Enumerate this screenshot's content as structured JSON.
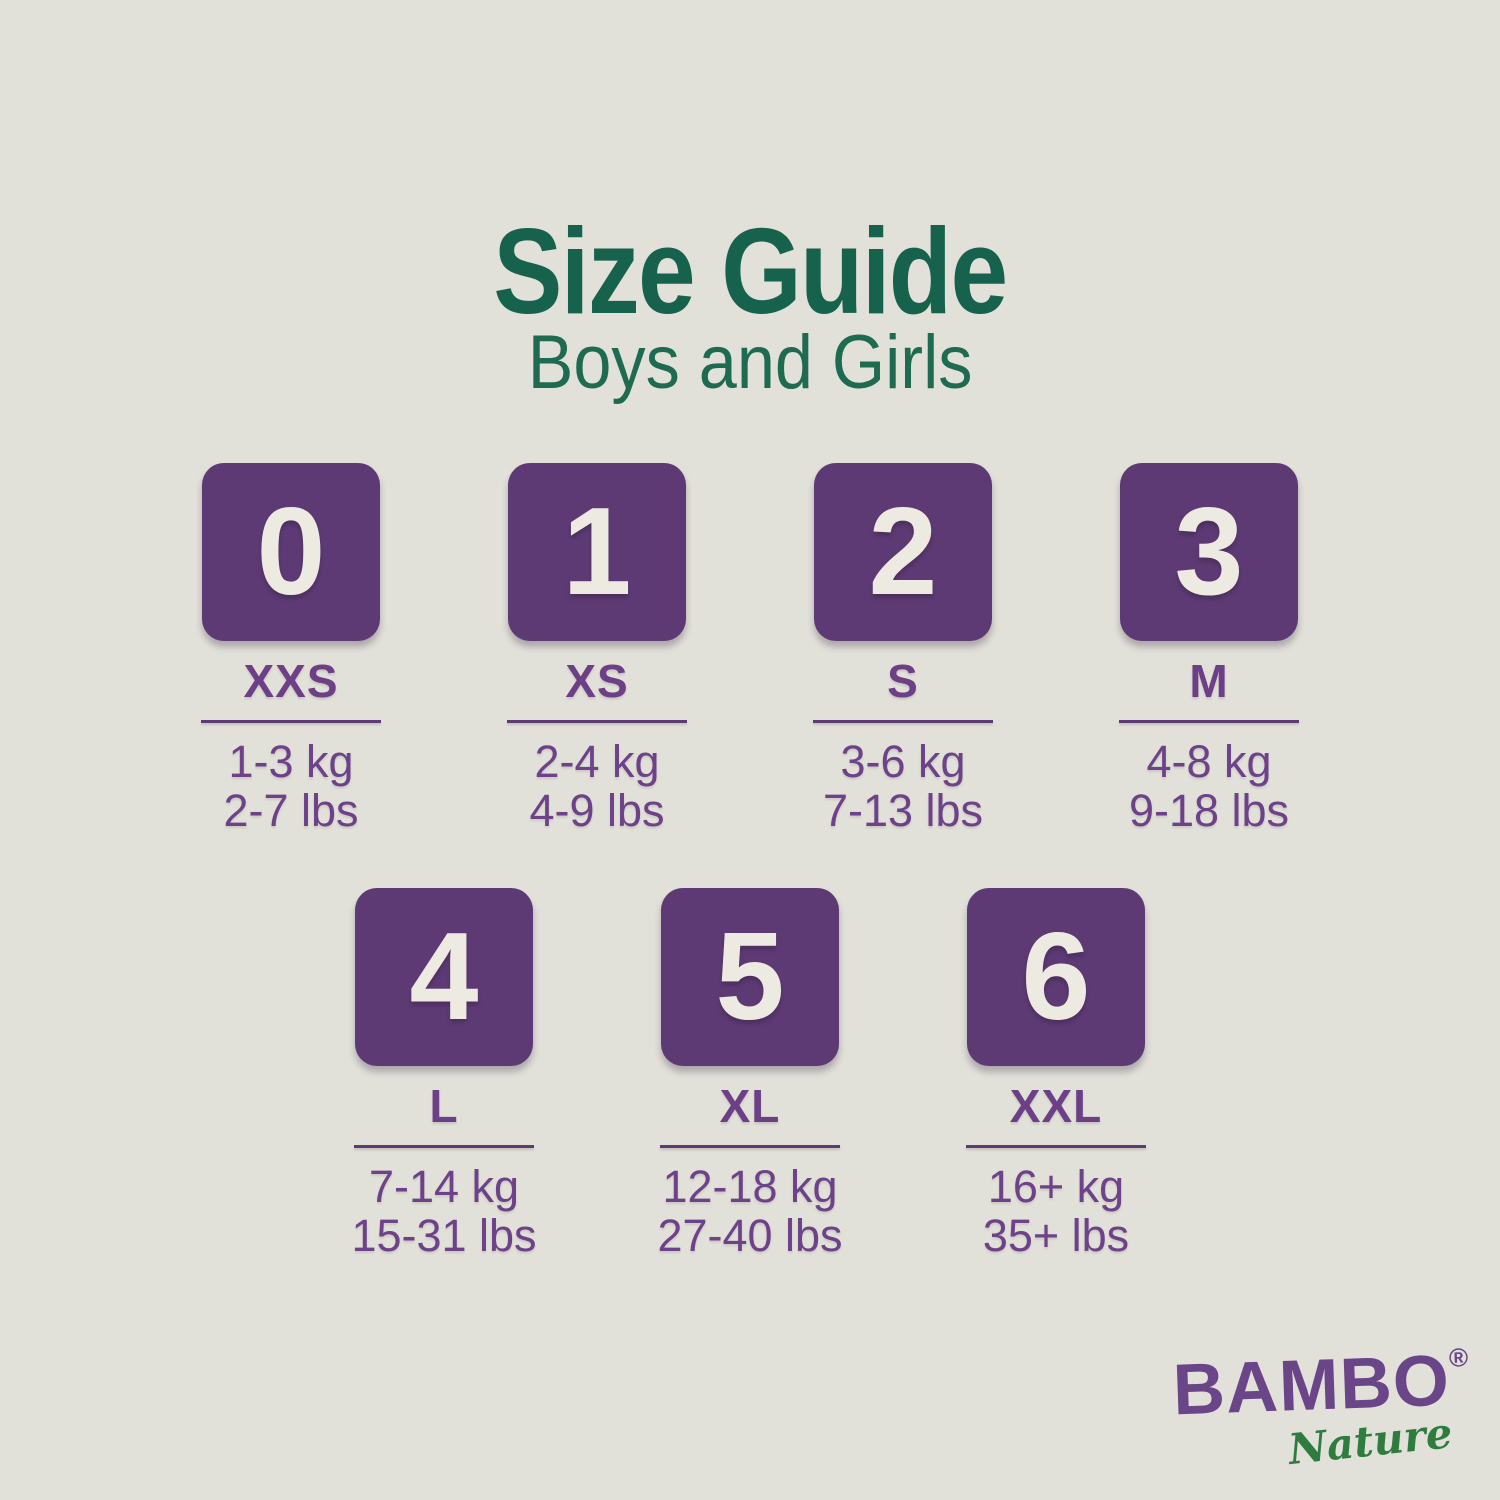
{
  "header": {
    "title": "Size Guide",
    "subtitle": "Boys and Girls"
  },
  "sizes": [
    {
      "number": "0",
      "label": "XXS",
      "kg": "1-3 kg",
      "lbs": "2-7 lbs"
    },
    {
      "number": "1",
      "label": "XS",
      "kg": "2-4 kg",
      "lbs": "4-9 lbs"
    },
    {
      "number": "2",
      "label": "S",
      "kg": "3-6 kg",
      "lbs": "7-13 lbs"
    },
    {
      "number": "3",
      "label": "M",
      "kg": "4-8 kg",
      "lbs": "9-18 lbs"
    },
    {
      "number": "4",
      "label": "L",
      "kg": "7-14 kg",
      "lbs": "15-31 lbs"
    },
    {
      "number": "5",
      "label": "XL",
      "kg": "12-18 kg",
      "lbs": "27-40 lbs"
    },
    {
      "number": "6",
      "label": "XXL",
      "kg": "16+ kg",
      "lbs": "35+ lbs"
    }
  ],
  "brand": {
    "name": "BAMBO",
    "registered": "®",
    "tagline": "Nature"
  },
  "colors": {
    "background": "#e1e0d9",
    "green_dark": "#17624c",
    "green": "#1e6b52",
    "tile_purple": "#5d3a74",
    "number_cream": "#edeae1",
    "label_purple": "#6c3f86",
    "weight_purple": "#6d4289",
    "logo_purple": "#6a4588",
    "logo_green": "#2e7c3e"
  }
}
